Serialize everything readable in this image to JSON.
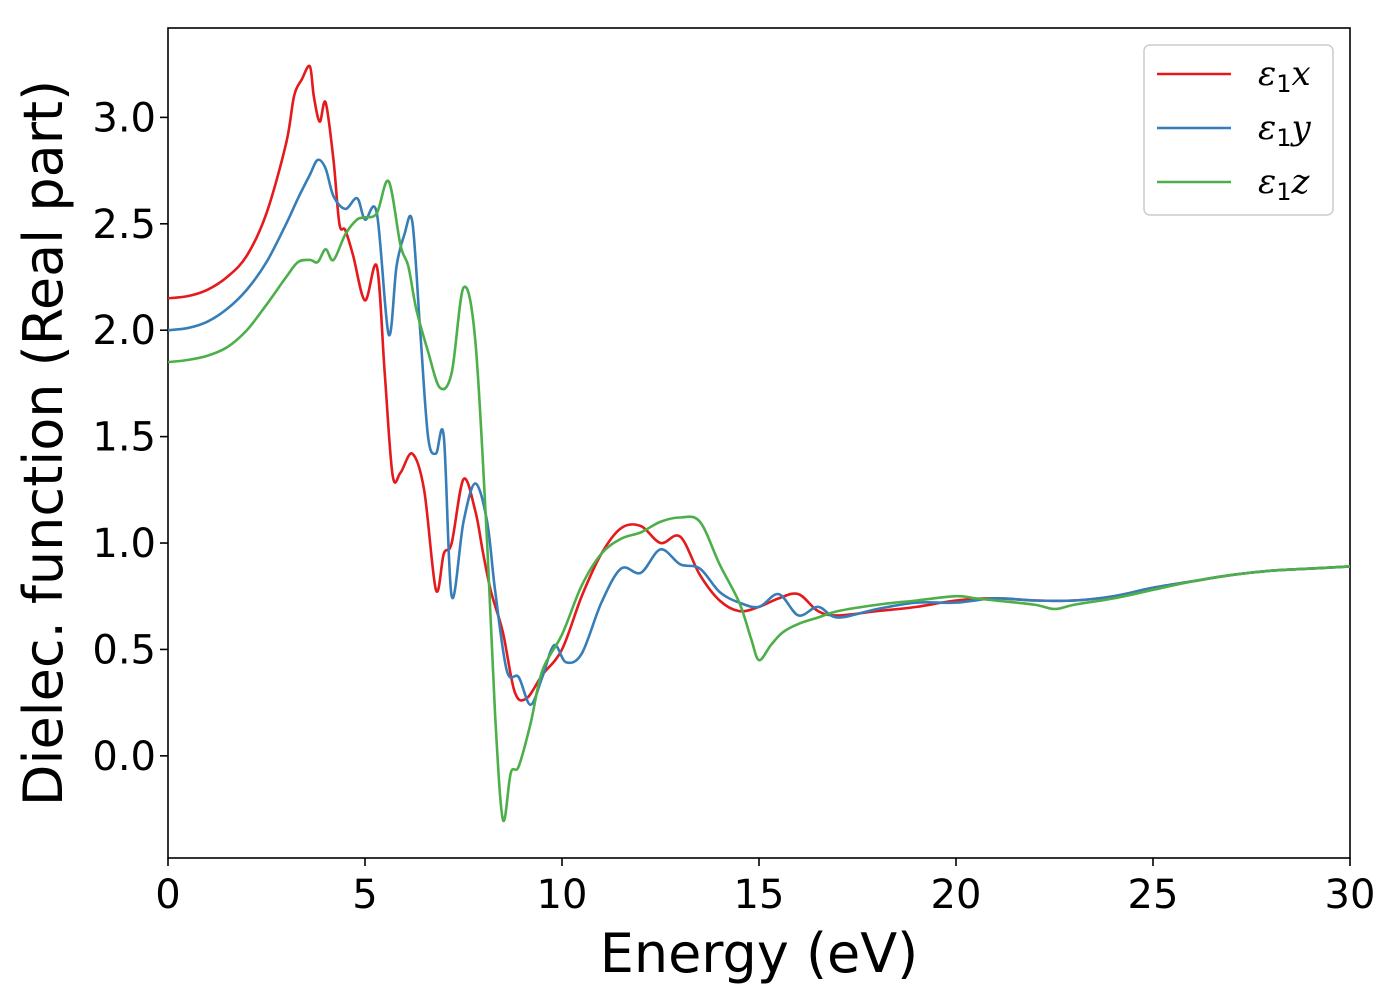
{
  "chart_data": {
    "type": "line",
    "xlabel": "Energy (eV)",
    "ylabel": "Dielec. function (Real part)",
    "xlim": [
      0,
      30
    ],
    "ylim": [
      -0.48,
      3.42
    ],
    "xticks": [
      0,
      5,
      10,
      15,
      20,
      25,
      30
    ],
    "xtick_labels": [
      "0",
      "5",
      "10",
      "15",
      "20",
      "25",
      "30"
    ],
    "yticks": [
      0.0,
      0.5,
      1.0,
      1.5,
      2.0,
      2.5,
      3.0
    ],
    "ytick_labels": [
      "0.0",
      "0.5",
      "1.0",
      "1.5",
      "2.0",
      "2.5",
      "3.0"
    ],
    "grid": false,
    "legend_position": "top-right",
    "series": [
      {
        "name": "ε1x",
        "legend_base": "ε",
        "legend_sub": "1",
        "legend_var": "x",
        "color": "#e41a1c",
        "x": [
          0,
          0.5,
          1,
          1.5,
          2,
          2.5,
          3,
          3.2,
          3.4,
          3.6,
          3.7,
          3.85,
          4.0,
          4.2,
          4.35,
          4.5,
          4.7,
          5.0,
          5.3,
          5.5,
          5.7,
          5.9,
          6.2,
          6.5,
          6.8,
          7.0,
          7.2,
          7.5,
          7.8,
          8.0,
          8.2,
          8.5,
          8.8,
          9.1,
          9.5,
          10,
          10.5,
          11,
          11.5,
          12,
          12.5,
          13,
          13.5,
          14,
          14.5,
          15,
          15.5,
          16,
          16.5,
          17,
          18,
          19,
          20,
          21,
          22,
          23,
          24,
          25,
          26,
          27,
          28,
          29,
          30
        ],
        "y": [
          2.15,
          2.16,
          2.19,
          2.25,
          2.35,
          2.55,
          2.88,
          3.1,
          3.18,
          3.24,
          3.1,
          2.98,
          3.07,
          2.8,
          2.5,
          2.47,
          2.35,
          2.14,
          2.3,
          1.8,
          1.32,
          1.33,
          1.42,
          1.25,
          0.78,
          0.95,
          1.0,
          1.3,
          1.15,
          0.95,
          0.77,
          0.58,
          0.3,
          0.27,
          0.38,
          0.5,
          0.75,
          0.95,
          1.07,
          1.08,
          1.0,
          1.03,
          0.85,
          0.73,
          0.68,
          0.7,
          0.74,
          0.76,
          0.68,
          0.66,
          0.68,
          0.7,
          0.73,
          0.74,
          0.73,
          0.73,
          0.75,
          0.79,
          0.82,
          0.85,
          0.87,
          0.88,
          0.89
        ]
      },
      {
        "name": "ε1y",
        "legend_base": "ε",
        "legend_sub": "1",
        "legend_var": "y",
        "color": "#377eb8",
        "x": [
          0,
          0.5,
          1,
          1.5,
          2,
          2.5,
          3,
          3.3,
          3.6,
          3.8,
          4.0,
          4.2,
          4.5,
          4.8,
          5.0,
          5.3,
          5.6,
          5.8,
          6.0,
          6.2,
          6.4,
          6.6,
          6.8,
          7.0,
          7.2,
          7.5,
          7.8,
          8.1,
          8.3,
          8.6,
          8.9,
          9.2,
          9.5,
          9.8,
          10.1,
          10.5,
          11,
          11.5,
          12,
          12.5,
          13,
          13.5,
          14,
          14.5,
          15,
          15.5,
          16,
          16.5,
          17,
          18,
          19,
          20,
          21,
          22,
          23,
          24,
          25,
          26,
          27,
          28,
          29,
          30
        ],
        "y": [
          2.0,
          2.01,
          2.04,
          2.1,
          2.19,
          2.32,
          2.5,
          2.62,
          2.73,
          2.8,
          2.76,
          2.63,
          2.57,
          2.62,
          2.52,
          2.55,
          1.98,
          2.3,
          2.45,
          2.51,
          2.0,
          1.5,
          1.42,
          1.5,
          0.75,
          1.1,
          1.28,
          1.1,
          0.78,
          0.4,
          0.37,
          0.24,
          0.37,
          0.52,
          0.44,
          0.48,
          0.72,
          0.88,
          0.86,
          0.97,
          0.9,
          0.88,
          0.77,
          0.72,
          0.7,
          0.76,
          0.66,
          0.7,
          0.65,
          0.69,
          0.72,
          0.72,
          0.74,
          0.73,
          0.73,
          0.75,
          0.79,
          0.82,
          0.85,
          0.87,
          0.88,
          0.89
        ]
      },
      {
        "name": "ε1z",
        "legend_base": "ε",
        "legend_sub": "1",
        "legend_var": "z",
        "color": "#4daf4a",
        "x": [
          0,
          0.5,
          1,
          1.5,
          2,
          2.5,
          3,
          3.3,
          3.6,
          3.8,
          4.0,
          4.2,
          4.5,
          4.8,
          5.0,
          5.3,
          5.6,
          5.9,
          6.1,
          6.3,
          6.6,
          6.9,
          7.2,
          7.5,
          7.8,
          8.1,
          8.3,
          8.5,
          8.7,
          8.9,
          9.2,
          9.5,
          10,
          10.5,
          11,
          11.5,
          12,
          12.5,
          13,
          13.5,
          14,
          14.5,
          14.8,
          15.0,
          15.3,
          15.6,
          16,
          16.5,
          17,
          18,
          19,
          20,
          20.5,
          21,
          22,
          22.5,
          23,
          24,
          25,
          26,
          27,
          28,
          29,
          30
        ],
        "y": [
          1.85,
          1.86,
          1.88,
          1.92,
          2.0,
          2.12,
          2.25,
          2.32,
          2.33,
          2.32,
          2.38,
          2.33,
          2.45,
          2.52,
          2.53,
          2.55,
          2.7,
          2.4,
          2.3,
          2.1,
          1.9,
          1.73,
          1.8,
          2.2,
          1.95,
          1.0,
          0.2,
          -0.3,
          -0.08,
          -0.05,
          0.15,
          0.4,
          0.57,
          0.8,
          0.95,
          1.02,
          1.05,
          1.1,
          1.12,
          1.1,
          0.9,
          0.72,
          0.55,
          0.45,
          0.52,
          0.58,
          0.62,
          0.65,
          0.68,
          0.71,
          0.73,
          0.75,
          0.74,
          0.73,
          0.71,
          0.69,
          0.71,
          0.74,
          0.78,
          0.82,
          0.85,
          0.87,
          0.88,
          0.89
        ]
      }
    ]
  }
}
